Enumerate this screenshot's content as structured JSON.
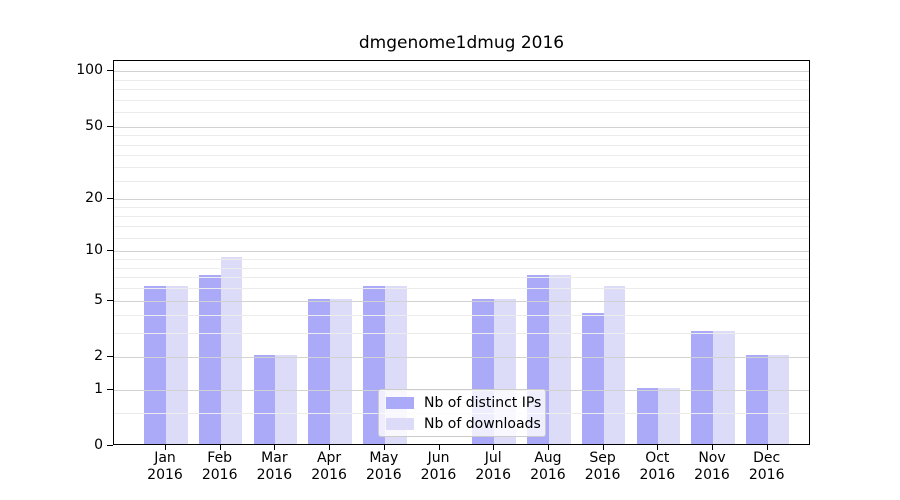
{
  "title": "dmgenome1dmug 2016",
  "chart_data": {
    "type": "bar",
    "title": "dmgenome1dmug 2016",
    "categories": [
      "Jan 2016",
      "Feb 2016",
      "Mar 2016",
      "Apr 2016",
      "May 2016",
      "Jun 2016",
      "Jul 2016",
      "Aug 2016",
      "Sep 2016",
      "Oct 2016",
      "Nov 2016",
      "Dec 2016"
    ],
    "series": [
      {
        "name": "Nb of distinct IPs",
        "color": "#aaaaf8",
        "values": [
          6,
          7,
          2,
          5,
          6,
          0,
          5,
          7,
          4,
          1,
          3,
          2
        ]
      },
      {
        "name": "Nb of downloads",
        "color": "#dcdcf8",
        "values": [
          6,
          9,
          2,
          5,
          6,
          0,
          5,
          7,
          6,
          1,
          3,
          2
        ]
      }
    ],
    "xlabel": "",
    "ylabel": "",
    "y_axis": {
      "scale": "log1p",
      "ticks": [
        0,
        1,
        2,
        5,
        10,
        20,
        50,
        100
      ],
      "minor_ticks": [
        0.5,
        3,
        4,
        6,
        7,
        8,
        9,
        12,
        14,
        16,
        18,
        25,
        30,
        35,
        40,
        45,
        60,
        70,
        80,
        90
      ],
      "ylim": [
        0,
        114
      ]
    },
    "grid": true,
    "legend_position": "lower center"
  }
}
